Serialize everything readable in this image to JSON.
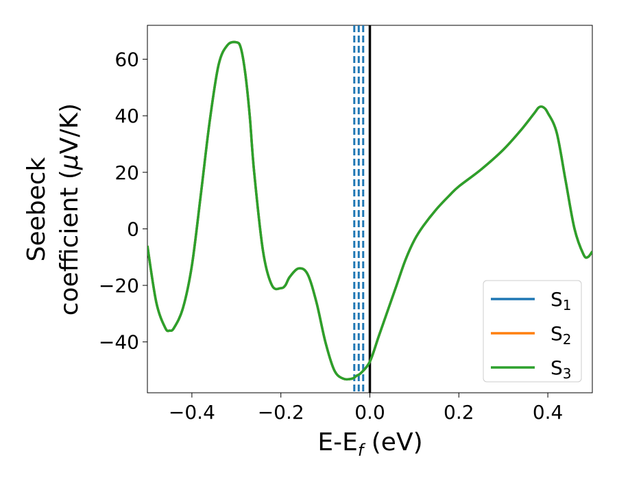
{
  "chart_data": {
    "type": "line",
    "xlabel_main": "E-E",
    "xlabel_sub": "f",
    "xlabel_unit": " (eV)",
    "ylabel_line1": "Seebeck",
    "ylabel_line2_prefix": "coefficient  (",
    "ylabel_line2_mu": "μ",
    "ylabel_line2_suffix": "V/K)",
    "xlim": [
      -0.5,
      0.5
    ],
    "ylim": [
      -58,
      72
    ],
    "xticks": [
      -0.4,
      -0.2,
      0.0,
      0.2,
      0.4
    ],
    "xtick_labels": [
      "−0.4",
      "−0.2",
      "0.0",
      "0.2",
      "0.4"
    ],
    "yticks": [
      -40,
      -20,
      0,
      20,
      40,
      60
    ],
    "ytick_labels": [
      "−40",
      "−20",
      "0",
      "20",
      "40",
      "60"
    ],
    "grid": false,
    "legend_position": "bottom-right",
    "vertical_lines": [
      {
        "x": 0.0,
        "style": "solid",
        "color": "#000000"
      },
      {
        "x": -0.035,
        "style": "dashed",
        "color": "#1f77b4"
      },
      {
        "x": -0.025,
        "style": "dashed",
        "color": "#1f77b4"
      },
      {
        "x": -0.015,
        "style": "dashed",
        "color": "#1f77b4"
      }
    ],
    "x": [
      -0.5,
      -0.48,
      -0.46,
      -0.45,
      -0.44,
      -0.42,
      -0.4,
      -0.38,
      -0.36,
      -0.34,
      -0.32,
      -0.3,
      -0.29,
      -0.28,
      -0.27,
      -0.26,
      -0.24,
      -0.22,
      -0.2,
      -0.19,
      -0.18,
      -0.16,
      -0.14,
      -0.12,
      -0.1,
      -0.08,
      -0.06,
      -0.04,
      -0.03,
      -0.02,
      0.0,
      0.02,
      0.04,
      0.06,
      0.08,
      0.1,
      0.12,
      0.15,
      0.18,
      0.2,
      0.25,
      0.3,
      0.34,
      0.37,
      0.38,
      0.39,
      0.4,
      0.42,
      0.44,
      0.46,
      0.48,
      0.49,
      0.5
    ],
    "series": [
      {
        "name": "S",
        "name_sub": "1",
        "color": "#1f77b4",
        "y": [
          -6,
          -26,
          -35,
          -36,
          -35,
          -28,
          -13,
          12,
          38,
          58,
          65,
          66,
          64,
          55,
          40,
          20,
          -8,
          -20,
          -21,
          -20,
          -17,
          -14,
          -16,
          -26,
          -40,
          -50,
          -53,
          -53,
          -52,
          -51,
          -47,
          -38,
          -29,
          -20,
          -11,
          -4,
          1,
          7,
          12,
          15,
          21,
          28,
          35,
          41,
          43,
          43,
          41,
          34,
          17,
          0,
          -9,
          -10,
          -8
        ]
      },
      {
        "name": "S",
        "name_sub": "2",
        "color": "#ff7f0e",
        "y": [
          -6,
          -26,
          -35,
          -36,
          -35,
          -28,
          -13,
          12,
          38,
          58,
          65,
          66,
          64,
          55,
          40,
          20,
          -8,
          -20,
          -21,
          -20,
          -17,
          -14,
          -16,
          -26,
          -40,
          -50,
          -53,
          -53,
          -52,
          -51,
          -47,
          -38,
          -29,
          -20,
          -11,
          -4,
          1,
          7,
          12,
          15,
          21,
          28,
          35,
          41,
          43,
          43,
          41,
          34,
          17,
          0,
          -9,
          -10,
          -8
        ]
      },
      {
        "name": "S",
        "name_sub": "3",
        "color": "#2ca02c",
        "y": [
          -6,
          -26,
          -35,
          -36,
          -35,
          -28,
          -13,
          12,
          38,
          58,
          65,
          66,
          64,
          55,
          40,
          20,
          -8,
          -20,
          -21,
          -20,
          -17,
          -14,
          -16,
          -26,
          -40,
          -50,
          -53,
          -53,
          -52,
          -51,
          -47,
          -38,
          -29,
          -20,
          -11,
          -4,
          1,
          7,
          12,
          15,
          21,
          28,
          35,
          41,
          43,
          43,
          41,
          34,
          17,
          0,
          -9,
          -10,
          -8
        ]
      }
    ]
  }
}
